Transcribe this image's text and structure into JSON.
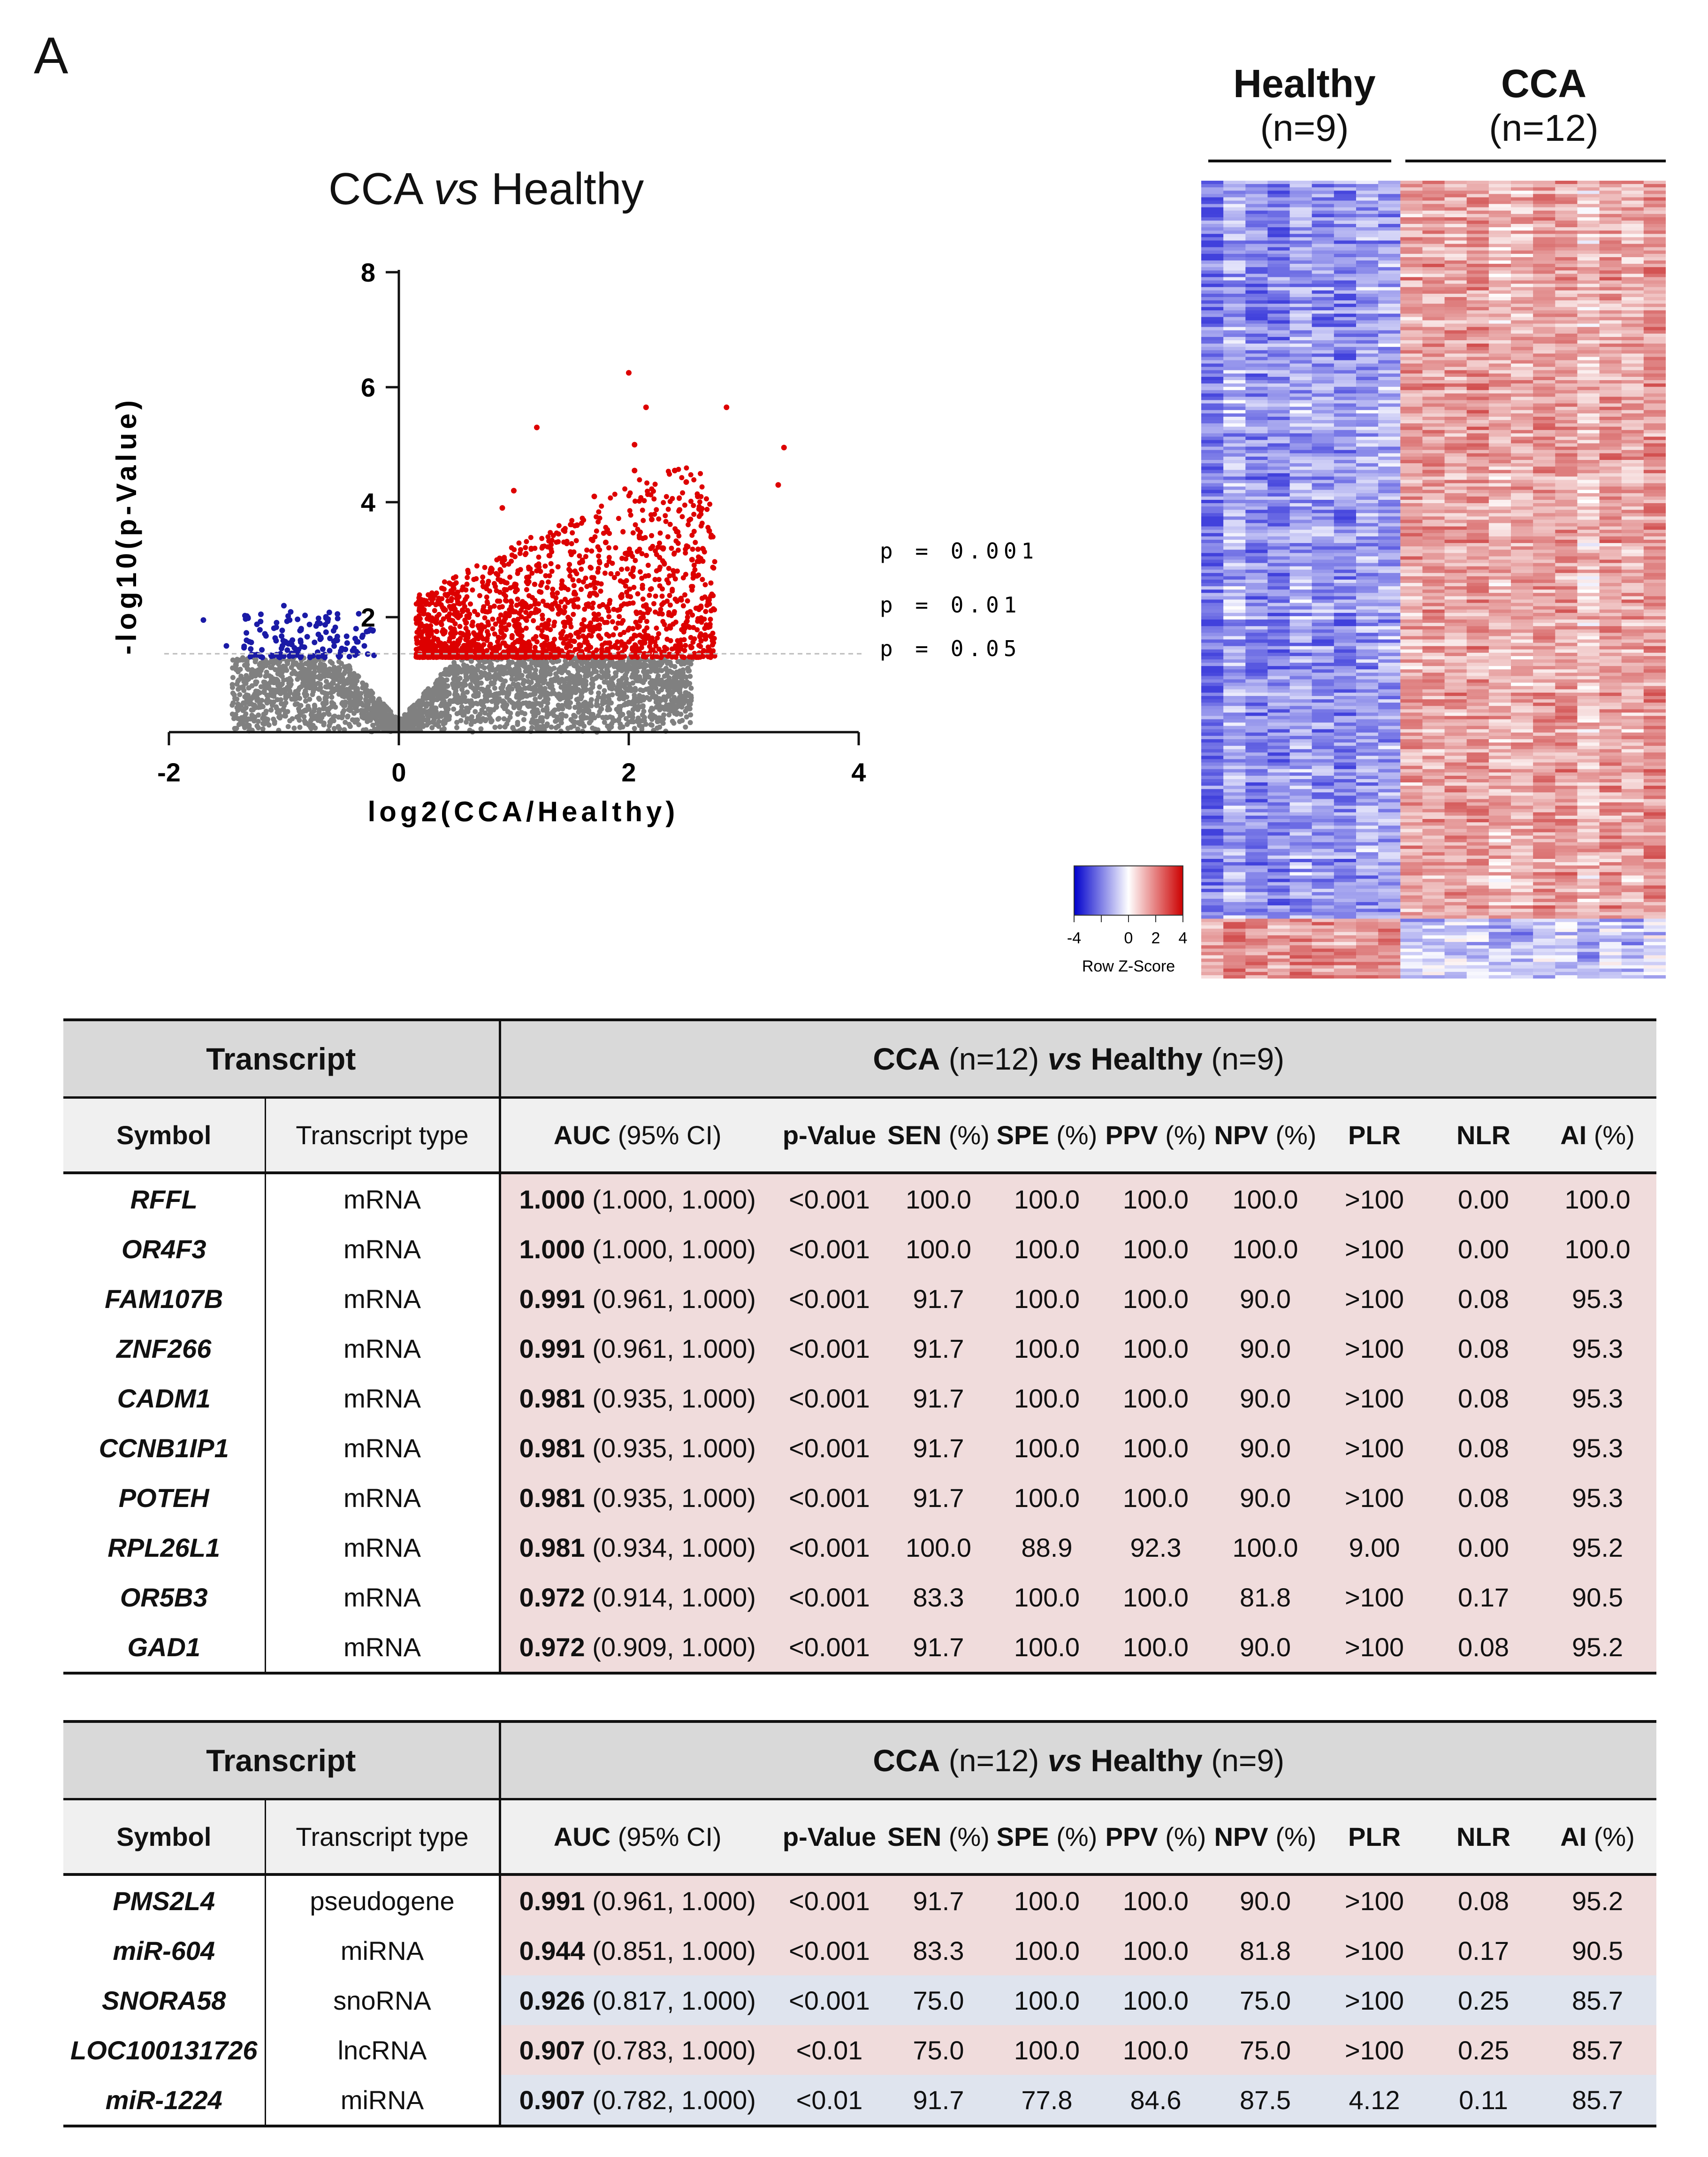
{
  "panel_label": "A",
  "volcano": {
    "title_pre": "CCA ",
    "title_vs": "vs",
    "title_post": " Healthy",
    "y_label": "-log10(p-Value)",
    "x_label": "log2(CCA/Healthy)",
    "thresholds": [
      "p = 0.001",
      "p = 0.01",
      "p = 0.05"
    ]
  },
  "chart_data": {
    "type": "scatter",
    "title": "CCA vs Healthy",
    "xlabel": "log2(CCA/Healthy)",
    "ylabel": "-log10(p-Value)",
    "xlim": [
      -2,
      4
    ],
    "ylim": [
      0,
      8
    ],
    "x_ticks": [
      "-2",
      "0",
      "2",
      "4"
    ],
    "y_ticks": [
      "2",
      "4",
      "6",
      "8"
    ],
    "threshold_levels": [
      {
        "label": "p = 0.001",
        "y": 3
      },
      {
        "label": "p = 0.01",
        "y": 2
      },
      {
        "label": "p = 0.05",
        "y": 1.3
      }
    ],
    "series": [
      {
        "name": "up-regulated (p<0.05)",
        "color": "#dd0000",
        "points": [
          [
            2.0,
            6.25
          ],
          [
            2.15,
            5.65
          ],
          [
            2.85,
            5.65
          ],
          [
            1.2,
            5.3
          ],
          [
            2.05,
            5.0
          ],
          [
            3.35,
            4.95
          ],
          [
            3.3,
            4.3
          ],
          [
            2.4,
            4.55
          ],
          [
            2.6,
            4.1
          ],
          [
            2.5,
            4.35
          ],
          [
            2.05,
            4.55
          ],
          [
            1.7,
            4.1
          ],
          [
            1.0,
            4.2
          ],
          [
            0.9,
            3.9
          ],
          [
            2.2,
            3.7
          ],
          [
            2.7,
            3.5
          ],
          [
            2.55,
            3.0
          ],
          [
            2.3,
            3.2
          ],
          [
            1.55,
            3.6
          ],
          [
            1.8,
            3.3
          ]
        ]
      },
      {
        "name": "down-regulated (p<0.05)",
        "color": "#1a1aa6",
        "points": [
          [
            -1.7,
            1.95
          ],
          [
            -1.2,
            2.05
          ],
          [
            -1.0,
            2.2
          ],
          [
            -0.95,
            1.95
          ],
          [
            -0.85,
            1.8
          ],
          [
            -0.7,
            1.7
          ],
          [
            -0.55,
            1.6
          ],
          [
            -0.45,
            1.55
          ],
          [
            -1.5,
            1.5
          ],
          [
            -0.3,
            1.5
          ]
        ]
      },
      {
        "name": "not significant",
        "color": "#808080",
        "points": "dense cloud below p = 0.05 around x = 0"
      }
    ]
  },
  "heatmap": {
    "groups": [
      {
        "name": "Healthy",
        "n": "(n=9)"
      },
      {
        "name": "CCA",
        "n": "(n=12)"
      }
    ],
    "colorbar": {
      "ticks": [
        "-4",
        "0",
        "2",
        "4"
      ],
      "label": "Row Z-Score",
      "low_color": "#0000cc",
      "mid_color": "#ffffff",
      "high_color": "#cc0000"
    }
  },
  "table_header": {
    "transcript": "Transcript",
    "comparison_a": "CCA",
    "comparison_a_n": " (n=12) ",
    "comparison_vs": "vs",
    "comparison_b": " Healthy",
    "comparison_b_n": " (n=9)",
    "symbol": "Symbol",
    "transcript_type": "Transcript type",
    "auc": "AUC",
    "auc_ci": " (95% CI)",
    "pvalue": "p-Value",
    "sen": "SEN",
    "spe": "SPE",
    "ppv": "PPV",
    "npv": "NPV",
    "pct": " (%)",
    "plr": "PLR",
    "nlr": "NLR",
    "ai": "AI"
  },
  "table1": [
    {
      "symbol": "RFFL",
      "type": "mRNA",
      "auc": "1.000",
      "ci": " (1.000, 1.000)",
      "p": "<0.001",
      "sen": "100.0",
      "spe": "100.0",
      "ppv": "100.0",
      "npv": "100.0",
      "plr": ">100",
      "nlr": "0.00",
      "ai": "100.0",
      "tone": "up"
    },
    {
      "symbol": "OR4F3",
      "type": "mRNA",
      "auc": "1.000",
      "ci": " (1.000, 1.000)",
      "p": "<0.001",
      "sen": "100.0",
      "spe": "100.0",
      "ppv": "100.0",
      "npv": "100.0",
      "plr": ">100",
      "nlr": "0.00",
      "ai": "100.0",
      "tone": "up"
    },
    {
      "symbol": "FAM107B",
      "type": "mRNA",
      "auc": "0.991",
      "ci": " (0.961, 1.000)",
      "p": "<0.001",
      "sen": "91.7",
      "spe": "100.0",
      "ppv": "100.0",
      "npv": "90.0",
      "plr": ">100",
      "nlr": "0.08",
      "ai": "95.3",
      "tone": "up"
    },
    {
      "symbol": "ZNF266",
      "type": "mRNA",
      "auc": "0.991",
      "ci": " (0.961, 1.000)",
      "p": "<0.001",
      "sen": "91.7",
      "spe": "100.0",
      "ppv": "100.0",
      "npv": "90.0",
      "plr": ">100",
      "nlr": "0.08",
      "ai": "95.3",
      "tone": "up"
    },
    {
      "symbol": "CADM1",
      "type": "mRNA",
      "auc": "0.981",
      "ci": " (0.935, 1.000)",
      "p": "<0.001",
      "sen": "91.7",
      "spe": "100.0",
      "ppv": "100.0",
      "npv": "90.0",
      "plr": ">100",
      "nlr": "0.08",
      "ai": "95.3",
      "tone": "up"
    },
    {
      "symbol": "CCNB1IP1",
      "type": "mRNA",
      "auc": "0.981",
      "ci": " (0.935, 1.000)",
      "p": "<0.001",
      "sen": "91.7",
      "spe": "100.0",
      "ppv": "100.0",
      "npv": "90.0",
      "plr": ">100",
      "nlr": "0.08",
      "ai": "95.3",
      "tone": "up"
    },
    {
      "symbol": "POTEH",
      "type": "mRNA",
      "auc": "0.981",
      "ci": " (0.935, 1.000)",
      "p": "<0.001",
      "sen": "91.7",
      "spe": "100.0",
      "ppv": "100.0",
      "npv": "90.0",
      "plr": ">100",
      "nlr": "0.08",
      "ai": "95.3",
      "tone": "up"
    },
    {
      "symbol": "RPL26L1",
      "type": "mRNA",
      "auc": "0.981",
      "ci": " (0.934, 1.000)",
      "p": "<0.001",
      "sen": "100.0",
      "spe": "88.9",
      "ppv": "92.3",
      "npv": "100.0",
      "plr": "9.00",
      "nlr": "0.00",
      "ai": "95.2",
      "tone": "up"
    },
    {
      "symbol": "OR5B3",
      "type": "mRNA",
      "auc": "0.972",
      "ci": " (0.914, 1.000)",
      "p": "<0.001",
      "sen": "83.3",
      "spe": "100.0",
      "ppv": "100.0",
      "npv": "81.8",
      "plr": ">100",
      "nlr": "0.17",
      "ai": "90.5",
      "tone": "up"
    },
    {
      "symbol": "GAD1",
      "type": "mRNA",
      "auc": "0.972",
      "ci": " (0.909, 1.000)",
      "p": "<0.001",
      "sen": "91.7",
      "spe": "100.0",
      "ppv": "100.0",
      "npv": "90.0",
      "plr": ">100",
      "nlr": "0.08",
      "ai": "95.2",
      "tone": "up"
    }
  ],
  "table2": [
    {
      "symbol": "PMS2L4",
      "type": "pseudogene",
      "auc": "0.991",
      "ci": " (0.961, 1.000)",
      "p": "<0.001",
      "sen": "91.7",
      "spe": "100.0",
      "ppv": "100.0",
      "npv": "90.0",
      "plr": ">100",
      "nlr": "0.08",
      "ai": "95.2",
      "tone": "up"
    },
    {
      "symbol": "miR-604",
      "type": "miRNA",
      "auc": "0.944",
      "ci": " (0.851, 1.000)",
      "p": "<0.001",
      "sen": "83.3",
      "spe": "100.0",
      "ppv": "100.0",
      "npv": "81.8",
      "plr": ">100",
      "nlr": "0.17",
      "ai": "90.5",
      "tone": "up"
    },
    {
      "symbol": "SNORA58",
      "type": "snoRNA",
      "auc": "0.926",
      "ci": " (0.817, 1.000)",
      "p": "<0.001",
      "sen": "75.0",
      "spe": "100.0",
      "ppv": "100.0",
      "npv": "75.0",
      "plr": ">100",
      "nlr": "0.25",
      "ai": "85.7",
      "tone": "down"
    },
    {
      "symbol": "LOC100131726",
      "type": "lncRNA",
      "auc": "0.907",
      "ci": " (0.783, 1.000)",
      "p": "<0.01",
      "sen": "75.0",
      "spe": "100.0",
      "ppv": "100.0",
      "npv": "75.0",
      "plr": ">100",
      "nlr": "0.25",
      "ai": "85.7",
      "tone": "up"
    },
    {
      "symbol": "miR-1224",
      "type": "miRNA",
      "auc": "0.907",
      "ci": " (0.782, 1.000)",
      "p": "<0.01",
      "sen": "91.7",
      "spe": "77.8",
      "ppv": "84.6",
      "npv": "87.5",
      "plr": "4.12",
      "nlr": "0.11",
      "ai": "85.7",
      "tone": "down"
    }
  ]
}
